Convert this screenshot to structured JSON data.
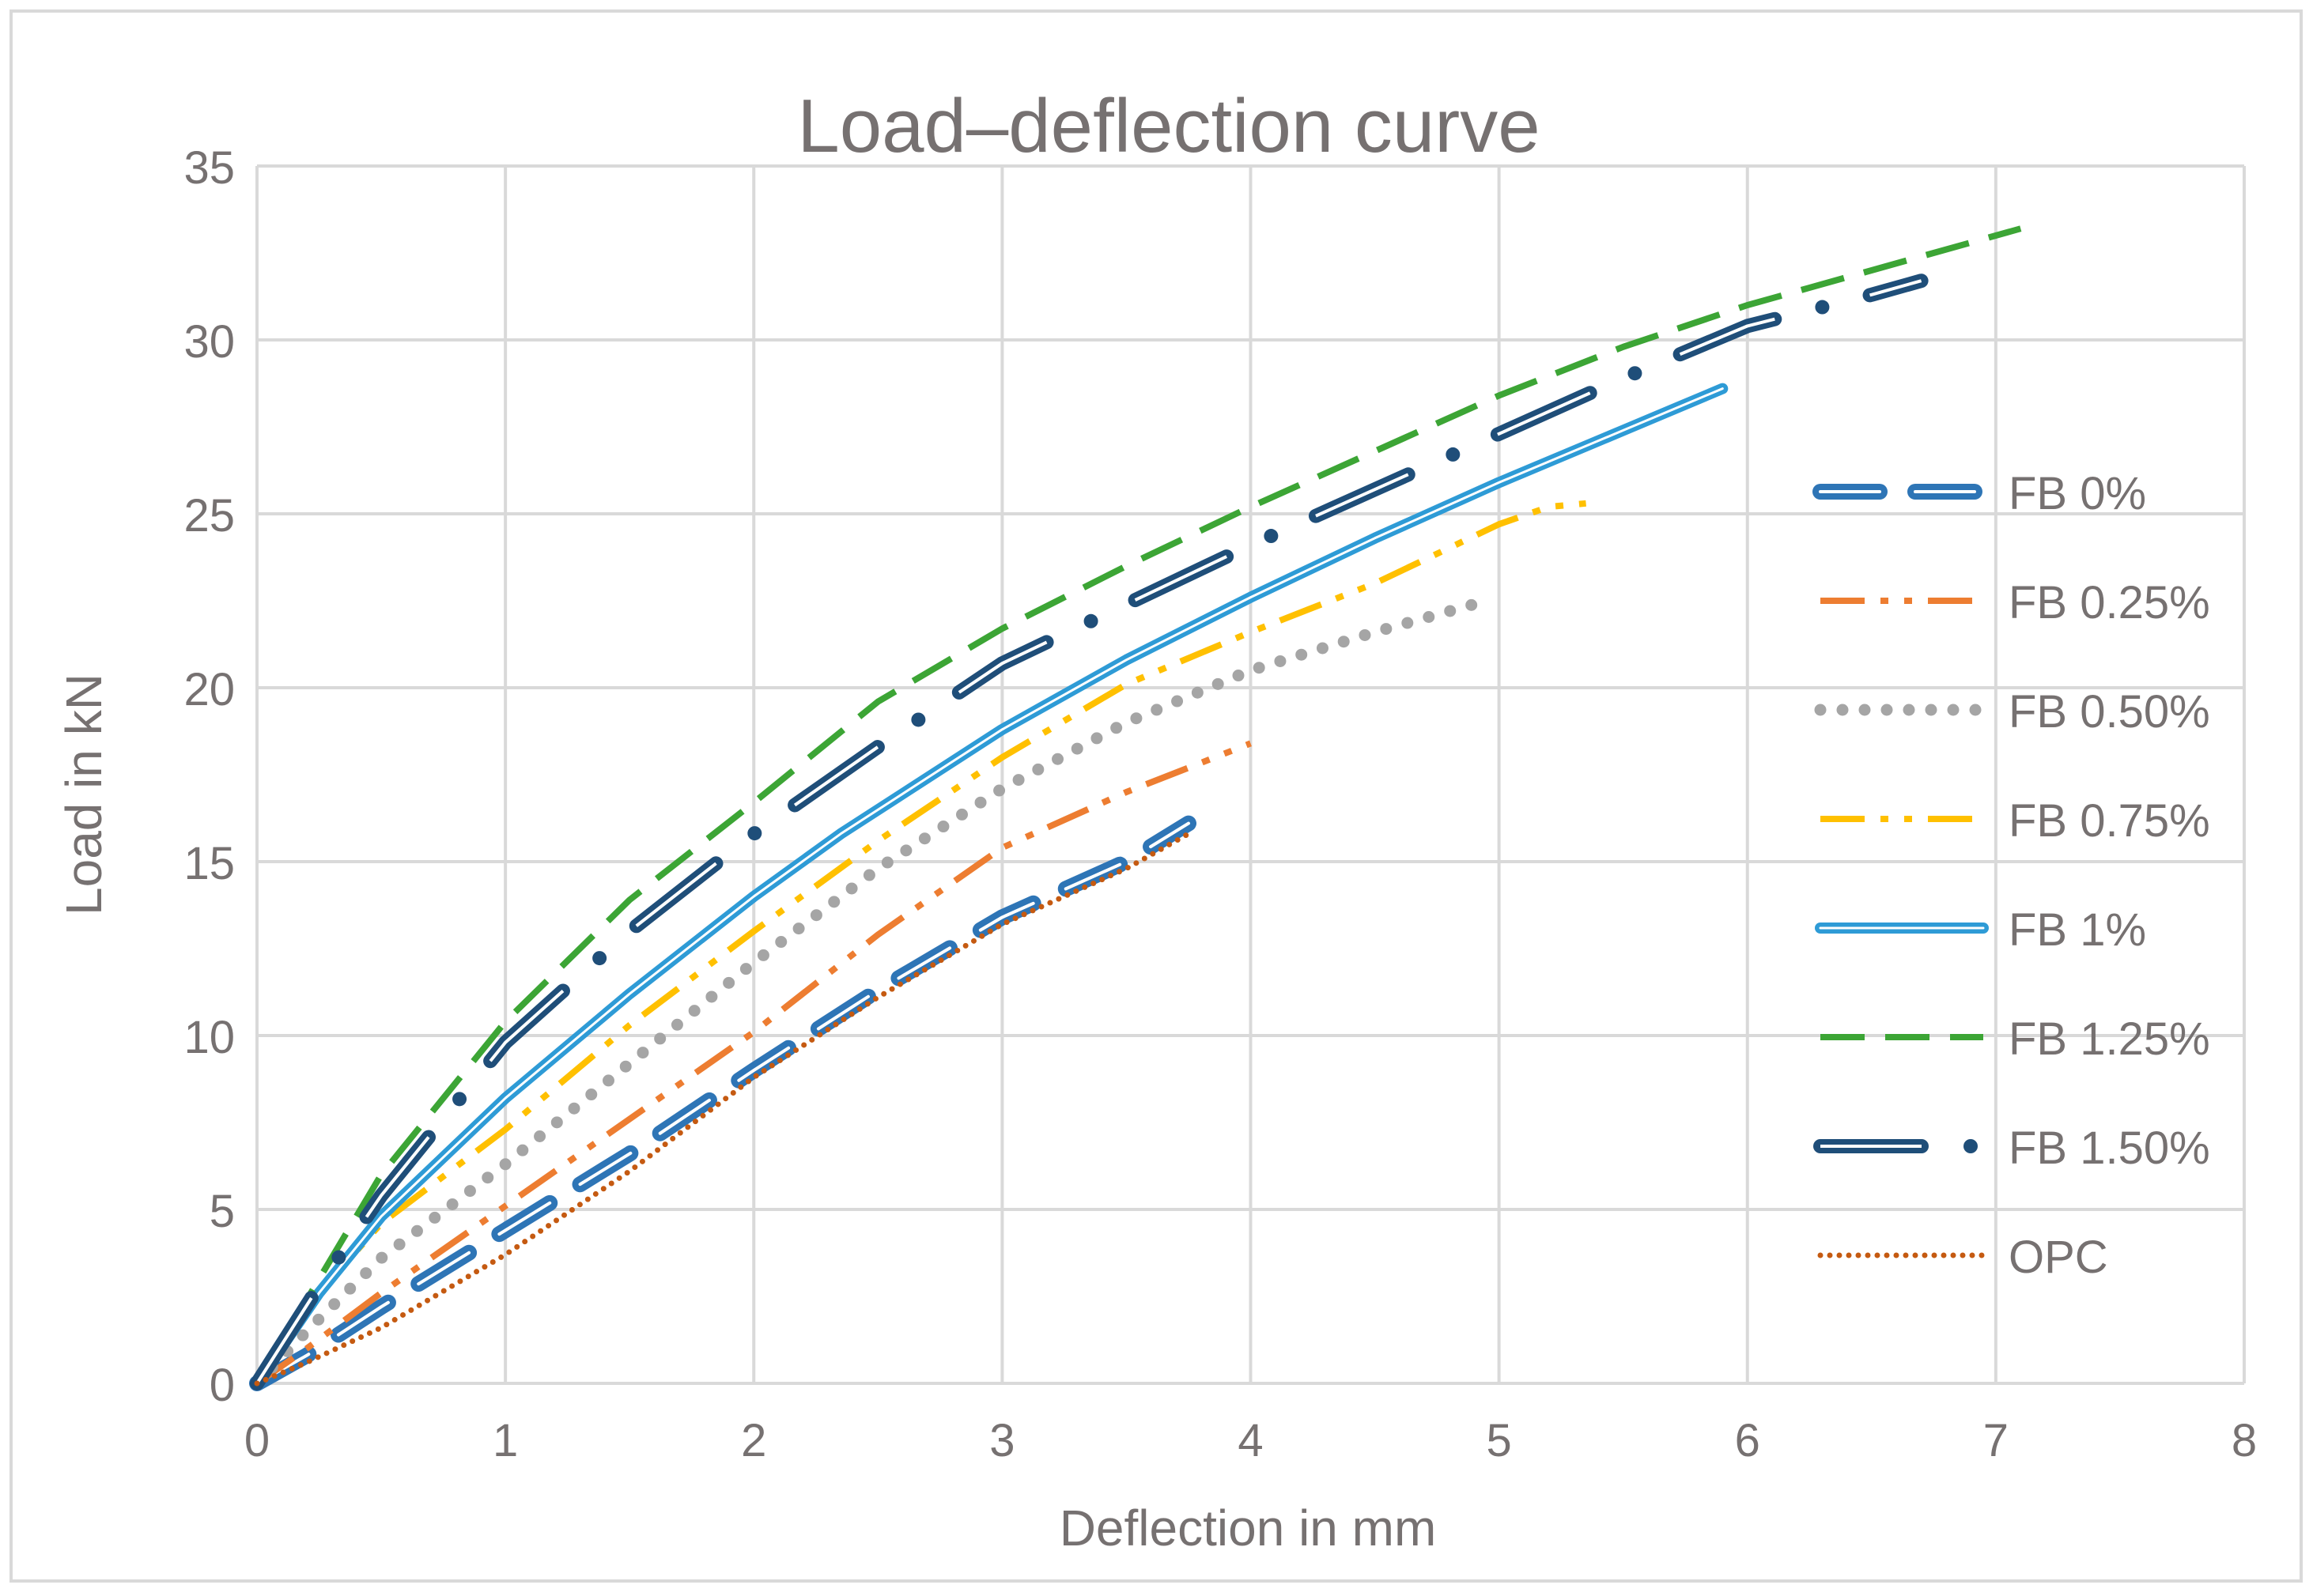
{
  "chart_data": {
    "type": "line",
    "title": "Load–deflection curve",
    "xlabel": "Deflection in mm",
    "ylabel": "Load in kN",
    "xlim": [
      0,
      8
    ],
    "ylim": [
      0,
      35
    ],
    "xticks": [
      0,
      1,
      2,
      3,
      4,
      5,
      6,
      7,
      8
    ],
    "yticks": [
      0,
      5,
      10,
      15,
      20,
      25,
      30,
      35
    ],
    "grid": true,
    "legend_position": "right",
    "colors": {
      "axis_text": "#767171",
      "grid": "#d9d9d9",
      "border": "#d9d9d9"
    },
    "series": [
      {
        "name": "FB 0%",
        "color": "#2e75b6",
        "style": "long-dash-double",
        "x": [
          0,
          0.2,
          0.5,
          1.0,
          1.5,
          2.0,
          2.5,
          3.0,
          3.5,
          3.75
        ],
        "y": [
          0,
          0.8,
          2.2,
          4.4,
          6.6,
          9.0,
          11.3,
          13.4,
          15.0,
          16.1
        ]
      },
      {
        "name": "FB 0.25%",
        "color": "#ed7d31",
        "style": "dash-dot-dot",
        "x": [
          0,
          0.2,
          0.5,
          1.0,
          1.5,
          2.0,
          2.5,
          3.0,
          3.5,
          4.0
        ],
        "y": [
          0,
          1.0,
          2.6,
          5.1,
          7.6,
          10.1,
          12.9,
          15.4,
          17.0,
          18.4
        ]
      },
      {
        "name": "FB 0.50%",
        "color": "#a5a5a5",
        "style": "dots",
        "x": [
          0,
          0.2,
          0.5,
          1.0,
          1.5,
          2.0,
          2.5,
          3.0,
          3.5,
          4.0,
          4.5,
          4.9
        ],
        "y": [
          0,
          1.5,
          3.6,
          6.3,
          9.2,
          12.1,
          14.8,
          17.1,
          19.0,
          20.5,
          21.6,
          22.4
        ]
      },
      {
        "name": "FB 0.75%",
        "color": "#ffc000",
        "style": "dash-dot-dot",
        "x": [
          0,
          0.2,
          0.5,
          1.0,
          1.5,
          2.0,
          2.5,
          3.0,
          3.5,
          4.0,
          4.5,
          5.0,
          5.2,
          5.35
        ],
        "y": [
          0,
          2.2,
          4.6,
          7.3,
          10.3,
          13.0,
          15.6,
          18.0,
          20.1,
          21.6,
          23.0,
          24.7,
          25.2,
          25.3
        ]
      },
      {
        "name": "FB 1%",
        "color": "#2e9bd6",
        "style": "solid-double",
        "x": [
          0,
          0.25,
          0.5,
          1.0,
          1.5,
          2.0,
          2.35,
          3.0,
          3.5,
          4.0,
          4.5,
          5.0,
          5.5,
          5.9
        ],
        "y": [
          0,
          2.6,
          4.8,
          8.2,
          11.2,
          14.0,
          15.8,
          18.8,
          20.8,
          22.6,
          24.3,
          25.9,
          27.4,
          28.6
        ]
      },
      {
        "name": "FB 1.25%",
        "color": "#3ca535",
        "style": "long-dash",
        "x": [
          0,
          0.25,
          0.5,
          1.0,
          1.5,
          2.0,
          2.5,
          3.0,
          3.5,
          4.0,
          4.5,
          5.0,
          5.5,
          6.0,
          6.5,
          7.1
        ],
        "y": [
          0,
          3.0,
          6.0,
          10.4,
          13.9,
          16.7,
          19.6,
          21.7,
          23.5,
          25.2,
          26.8,
          28.4,
          29.8,
          31.0,
          32.0,
          33.2
        ]
      },
      {
        "name": "FB 1.50%",
        "color": "#1f4e79",
        "style": "dash-dot-double",
        "x": [
          0,
          0.25,
          0.5,
          1.0,
          1.5,
          2.0,
          2.5,
          3.0,
          3.5,
          4.0,
          4.5,
          5.0,
          5.5,
          6.0,
          6.5,
          6.7
        ],
        "y": [
          0,
          2.8,
          5.4,
          9.8,
          13.0,
          15.8,
          18.3,
          20.7,
          22.4,
          24.1,
          25.7,
          27.3,
          28.9,
          30.4,
          31.3,
          31.7
        ]
      },
      {
        "name": "OPC",
        "color": "#c55a11",
        "style": "round-dots",
        "x": [
          0,
          0.2,
          0.5,
          1.0,
          1.5,
          2.0,
          2.5,
          3.0,
          3.5,
          3.75
        ],
        "y": [
          0,
          0.6,
          1.6,
          3.7,
          6.1,
          8.8,
          11.1,
          13.2,
          14.8,
          15.8
        ]
      }
    ]
  }
}
